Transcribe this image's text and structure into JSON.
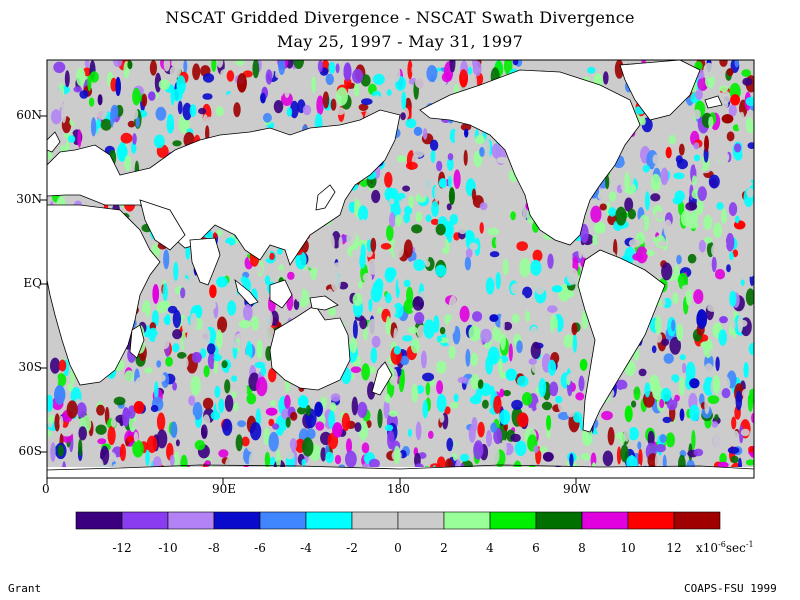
{
  "title_line1": "NSCAT Gridded Divergence - NSCAT Swath Divergence",
  "title_line2": "May 25, 1997 - May 31, 1997",
  "lat_labels": [
    "60N",
    "30N",
    "EQ",
    "30S",
    "60S"
  ],
  "lon_labels": [
    "0",
    "90E",
    "180",
    "90W"
  ],
  "colorbar": {
    "colors": [
      "#3a0080",
      "#8a3cf0",
      "#b383f5",
      "#0a0acc",
      "#3f86ff",
      "#00ffff",
      "#cccccc",
      "#cccccc",
      "#99ff99",
      "#00ee00",
      "#007000",
      "#e000e0",
      "#ff0000",
      "#a00000"
    ],
    "tick_labels": [
      "-12",
      "-10",
      "-8",
      "-6",
      "-4",
      "-2",
      "0",
      "2",
      "4",
      "6",
      "8",
      "10",
      "12"
    ],
    "units_base": "x10",
    "units_exp1": "-6",
    "units_mid": "sec",
    "units_exp2": "-1"
  },
  "footer_left": "Grant",
  "footer_right": "COAPS-FSU 1999",
  "chart_data": {
    "type": "heatmap",
    "x_range": [
      0,
      360
    ],
    "y_range": [
      -70,
      70
    ]
  }
}
